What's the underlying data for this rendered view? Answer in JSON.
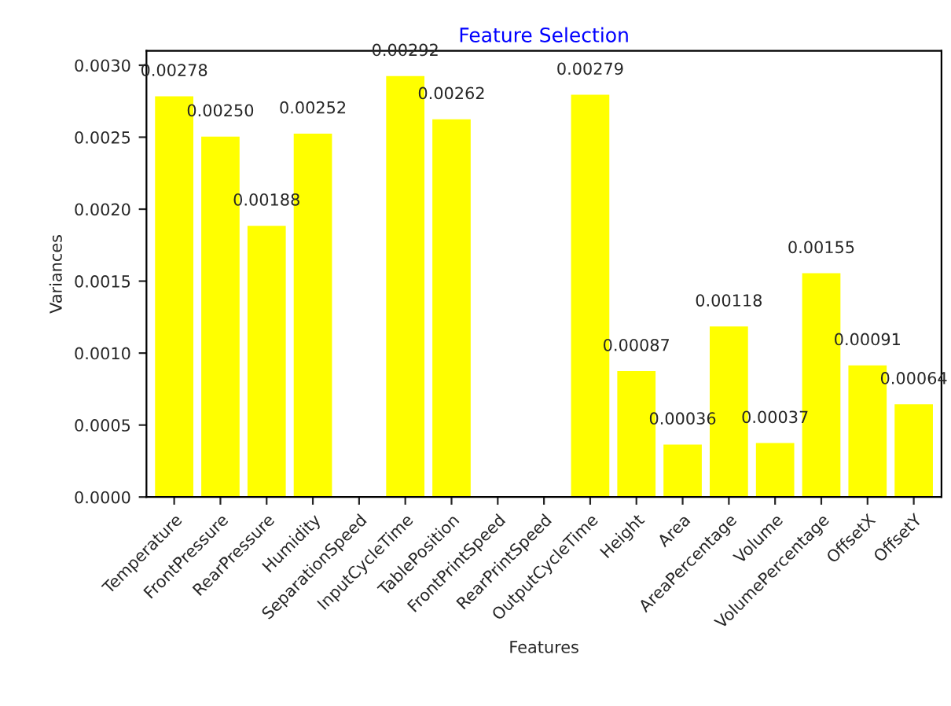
{
  "chart_data": {
    "type": "bar",
    "title": "Feature Selection",
    "xlabel": "Features",
    "ylabel": "Variances",
    "categories": [
      "Temperature",
      "FrontPressure",
      "RearPressure",
      "Humidity",
      "SeparationSpeed",
      "InputCycleTime",
      "TablePosition",
      "FrontPrintSpeed",
      "RearPrintSpeed",
      "OutputCycleTime",
      "Height",
      "Area",
      "AreaPercentage",
      "Volume",
      "VolumePercentage",
      "OffsetX",
      "OffsetY"
    ],
    "values": [
      0.00278,
      0.0025,
      0.00188,
      0.00252,
      0,
      0.00292,
      0.00262,
      0,
      0,
      0.00279,
      0.00087,
      0.00036,
      0.00118,
      0.00037,
      0.00155,
      0.00091,
      0.00064
    ],
    "value_labels": [
      "0.00278",
      "0.00250",
      "0.00188",
      "0.00252",
      null,
      "0.00292",
      "0.00262",
      null,
      null,
      "0.00279",
      "0.00087",
      "0.00036",
      "0.00118",
      "0.00037",
      "0.00155",
      "0.00091",
      "0.00064"
    ],
    "color": "#ffff00",
    "ylim": [
      0,
      0.0031
    ],
    "yticks": [
      {
        "value": 0,
        "label": "0.0000"
      },
      {
        "value": 0.0005,
        "label": "0.0005"
      },
      {
        "value": 0.001,
        "label": "0.0010"
      },
      {
        "value": 0.0015,
        "label": "0.0015"
      },
      {
        "value": 0.002,
        "label": "0.0020"
      },
      {
        "value": 0.0025,
        "label": "0.0025"
      },
      {
        "value": 0.003,
        "label": "0.0030"
      }
    ],
    "grid": false
  }
}
